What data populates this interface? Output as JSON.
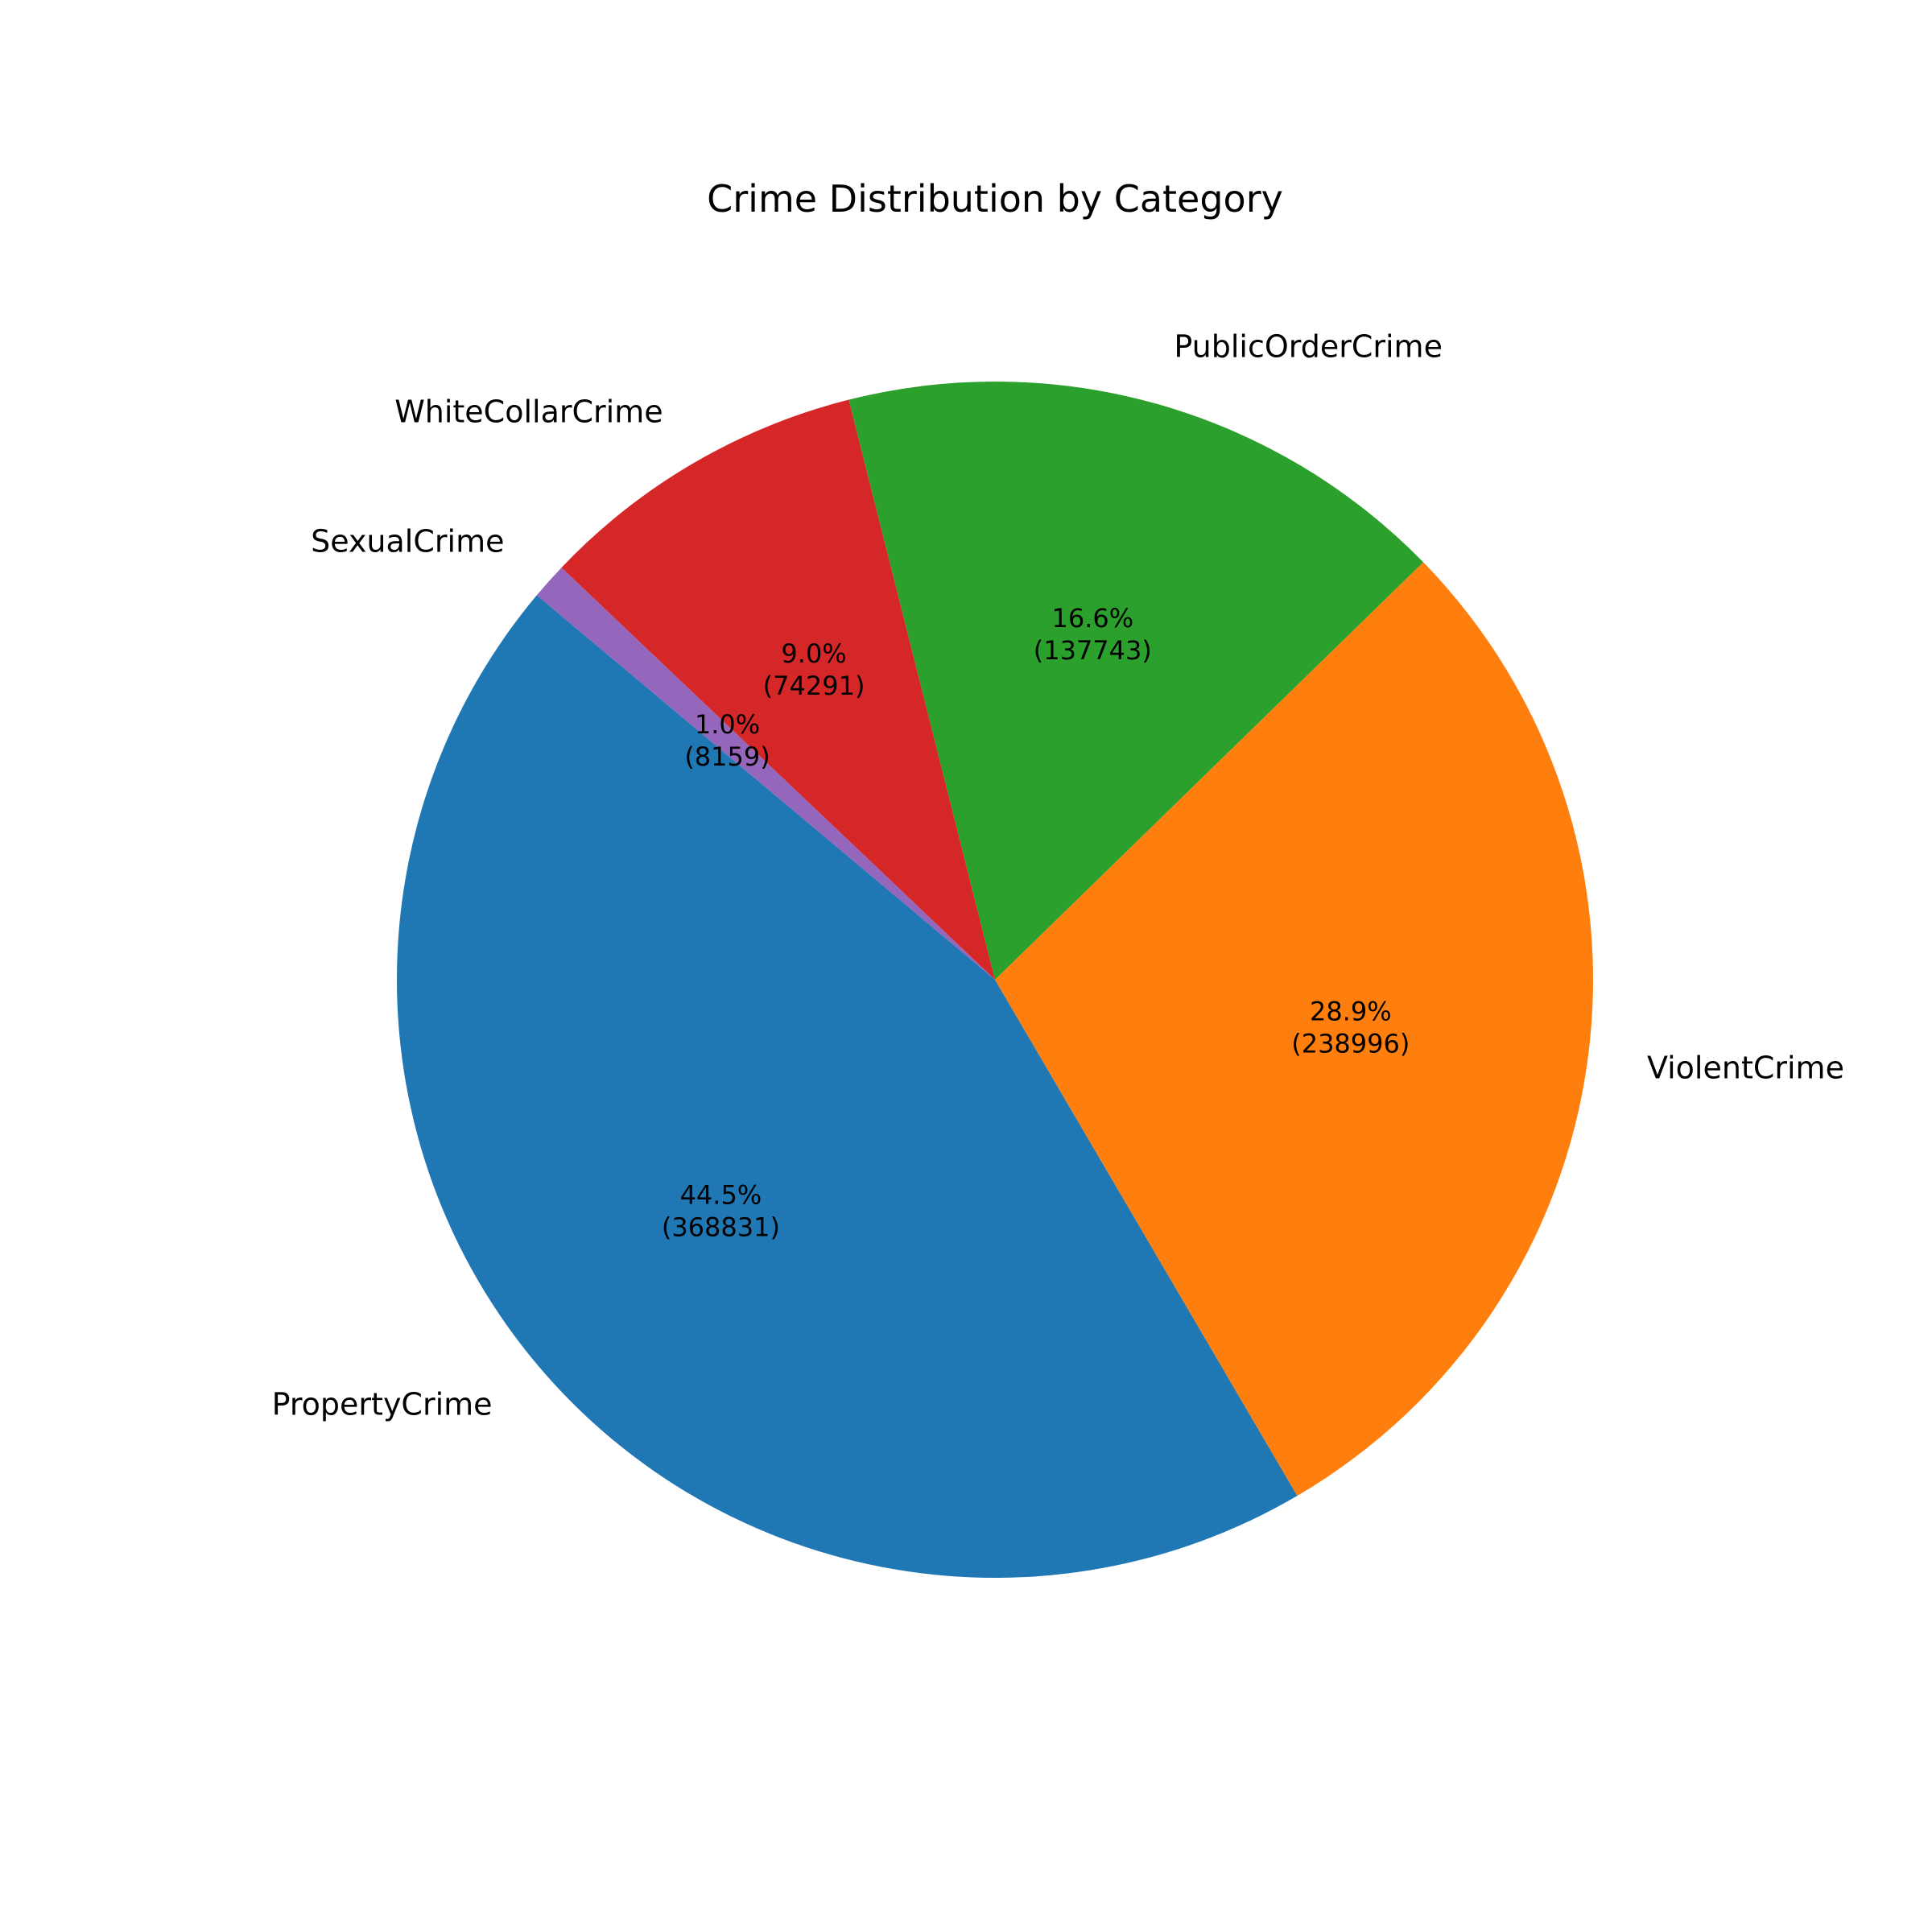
{
  "chart_data": {
    "type": "pie",
    "title": "Crime Distribution by Category",
    "start_angle_deg": 140,
    "direction": "counterclockwise",
    "slices": [
      {
        "label": "PropertyCrime",
        "value": 368831,
        "percent": "44.5%",
        "value_text": "(368831)",
        "color": "#1f77b4"
      },
      {
        "label": "ViolentCrime",
        "value": 238996,
        "percent": "28.9%",
        "value_text": "(238996)",
        "color": "#ff7f0e"
      },
      {
        "label": "PublicOrderCrime",
        "value": 137743,
        "percent": "16.6%",
        "value_text": "(137743)",
        "color": "#2ca02c"
      },
      {
        "label": "WhiteCollarCrime",
        "value": 74291,
        "percent": "9.0%",
        "value_text": "(74291)",
        "color": "#d62728"
      },
      {
        "label": "SexualCrime",
        "value": 8159,
        "percent": "1.0%",
        "value_text": "(8159)",
        "color": "#9467bd"
      }
    ]
  }
}
